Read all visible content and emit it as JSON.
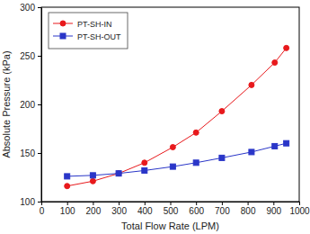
{
  "chart_data": {
    "type": "line",
    "x_label": "Total Flow Rate (LPM)",
    "y_label": "Absolute Pressure (kPa)",
    "xlim": [
      0,
      1000
    ],
    "xticks": [
      0,
      100,
      200,
      300,
      400,
      500,
      600,
      700,
      800,
      900,
      1000
    ],
    "ylim": [
      100,
      300
    ],
    "yticks": [
      100,
      150,
      200,
      250,
      300
    ],
    "legend": "upper left",
    "series": [
      {
        "name": "PT-SH-IN",
        "color": "#e8191c",
        "marker": "circle",
        "line_style": "solid",
        "x": [
          100,
          200,
          300,
          400,
          510,
          600,
          700,
          815,
          905,
          950
        ],
        "values": [
          116,
          121,
          129,
          140,
          156,
          171,
          193,
          220,
          243,
          258
        ]
      },
      {
        "name": "PT-SH-OUT",
        "color": "#2a36c8",
        "marker": "square",
        "line_style": "solid",
        "x": [
          100,
          200,
          300,
          400,
          510,
          600,
          700,
          815,
          905,
          950
        ],
        "values": [
          126,
          127,
          129,
          132,
          136,
          140,
          145,
          151,
          157,
          160
        ]
      }
    ]
  }
}
